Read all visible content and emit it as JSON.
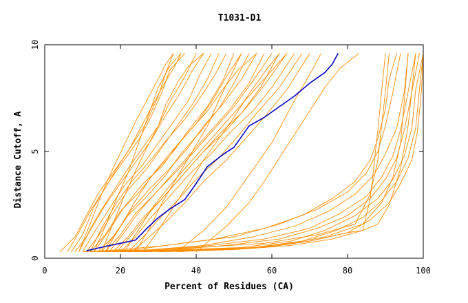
{
  "chart_data": {
    "type": "line",
    "title": "T1031-D1",
    "xlabel": "Percent of Residues (CA)",
    "ylabel": "Distance Cutoff, A",
    "xlim": [
      0,
      100
    ],
    "ylim": [
      0,
      10
    ],
    "x_ticks": [
      "0",
      "20",
      "40",
      "60",
      "80",
      "100"
    ],
    "y_ticks": [
      "0",
      "5",
      "10"
    ],
    "grid": false,
    "colors": {
      "highlight": "#0000cc",
      "others": "#ff8c00",
      "axis": "#000000"
    },
    "highlight_series": {
      "x": [
        11,
        16,
        20,
        24,
        27,
        30,
        33,
        37,
        40,
        43,
        47,
        50,
        52,
        54,
        58,
        62,
        66,
        70,
        74,
        76,
        77.5
      ],
      "y": [
        0.35,
        0.55,
        0.7,
        0.85,
        1.4,
        1.9,
        2.3,
        2.75,
        3.5,
        4.3,
        4.85,
        5.2,
        5.7,
        6.2,
        6.6,
        7.1,
        7.6,
        8.2,
        8.7,
        9.1,
        9.6
      ]
    },
    "other_series": [
      {
        "x": [
          4,
          8,
          11,
          14,
          18,
          22,
          25,
          28,
          31,
          33,
          35,
          36
        ],
        "y": [
          0.3,
          1.0,
          2.0,
          3.0,
          4.0,
          5.0,
          6.0,
          7.0,
          8.0,
          8.6,
          9.2,
          9.6
        ]
      },
      {
        "x": [
          6,
          9,
          12,
          16,
          19,
          23,
          27,
          30,
          32,
          34
        ],
        "y": [
          0.3,
          1.2,
          2.2,
          3.3,
          4.2,
          5.3,
          6.4,
          7.6,
          8.7,
          9.6
        ]
      },
      {
        "x": [
          7,
          10,
          13,
          17,
          21,
          25,
          28,
          31,
          33,
          37
        ],
        "y": [
          0.3,
          1.1,
          2.4,
          3.6,
          4.6,
          5.6,
          6.6,
          7.8,
          8.8,
          9.6
        ]
      },
      {
        "x": [
          8,
          11,
          14,
          18,
          22,
          26,
          30,
          33,
          37,
          40
        ],
        "y": [
          0.3,
          1.0,
          2.0,
          3.1,
          4.2,
          5.2,
          6.2,
          7.3,
          8.5,
          9.6
        ]
      },
      {
        "x": [
          9,
          12,
          16,
          20,
          24,
          28,
          32,
          36,
          39,
          42
        ],
        "y": [
          0.3,
          1.3,
          2.5,
          3.5,
          4.5,
          5.5,
          6.7,
          7.8,
          8.8,
          9.6
        ]
      },
      {
        "x": [
          10,
          13,
          17,
          21,
          26,
          30,
          34,
          38,
          41,
          44
        ],
        "y": [
          0.3,
          1.2,
          2.3,
          3.4,
          4.4,
          5.4,
          6.4,
          7.4,
          8.6,
          9.6
        ]
      },
      {
        "x": [
          11,
          14,
          18,
          22,
          27,
          31,
          35,
          39,
          43,
          46
        ],
        "y": [
          0.3,
          1.0,
          2.1,
          3.2,
          4.2,
          5.2,
          6.2,
          7.2,
          8.4,
          9.6
        ]
      },
      {
        "x": [
          12,
          15,
          19,
          23,
          28,
          32,
          37,
          41,
          45,
          48
        ],
        "y": [
          0.3,
          1.4,
          2.6,
          3.6,
          4.6,
          5.5,
          6.5,
          7.5,
          8.6,
          9.6
        ]
      },
      {
        "x": [
          12,
          16,
          20,
          25,
          29,
          34,
          38,
          43,
          47,
          50
        ],
        "y": [
          0.3,
          1.1,
          2.2,
          3.1,
          4.0,
          5.0,
          6.0,
          7.1,
          8.3,
          9.6
        ]
      },
      {
        "x": [
          13,
          17,
          21,
          26,
          31,
          35,
          40,
          44,
          48,
          52
        ],
        "y": [
          0.3,
          1.3,
          2.4,
          3.5,
          4.3,
          5.3,
          6.3,
          7.3,
          8.5,
          9.6
        ]
      },
      {
        "x": [
          14,
          18,
          22,
          27,
          32,
          36,
          41,
          46,
          50,
          54
        ],
        "y": [
          0.3,
          1.0,
          2.0,
          2.9,
          3.9,
          4.9,
          5.9,
          7.0,
          8.2,
          9.6
        ]
      },
      {
        "x": [
          15,
          19,
          23,
          28,
          33,
          38,
          42,
          47,
          52,
          56
        ],
        "y": [
          0.3,
          1.2,
          2.3,
          3.3,
          4.2,
          5.2,
          6.2,
          7.2,
          8.4,
          9.6
        ]
      },
      {
        "x": [
          16,
          20,
          24,
          29,
          34,
          39,
          44,
          49,
          54,
          58
        ],
        "y": [
          0.3,
          1.1,
          2.1,
          3.0,
          4.0,
          5.0,
          6.0,
          7.0,
          8.2,
          9.6
        ]
      },
      {
        "x": [
          17,
          21,
          25,
          30,
          35,
          40,
          45,
          50,
          55,
          60
        ],
        "y": [
          0.3,
          1.2,
          2.2,
          3.2,
          4.1,
          5.1,
          6.1,
          7.1,
          8.3,
          9.6
        ]
      },
      {
        "x": [
          18,
          22,
          26,
          31,
          36,
          41,
          46,
          52,
          57,
          62
        ],
        "y": [
          0.3,
          1.0,
          1.9,
          2.8,
          3.8,
          4.8,
          5.8,
          6.8,
          8.0,
          9.6
        ]
      },
      {
        "x": [
          19,
          23,
          27,
          32,
          37,
          42,
          48,
          53,
          58,
          64
        ],
        "y": [
          0.3,
          1.1,
          2.0,
          3.0,
          4.0,
          5.0,
          6.0,
          7.0,
          8.1,
          9.6
        ]
      },
      {
        "x": [
          20,
          24,
          28,
          33,
          38,
          44,
          49,
          55,
          60,
          66
        ],
        "y": [
          0.3,
          1.0,
          1.9,
          2.9,
          3.9,
          4.9,
          5.9,
          6.9,
          8.0,
          9.6
        ]
      },
      {
        "x": [
          22,
          26,
          30,
          35,
          40,
          46,
          51,
          56,
          62,
          68
        ],
        "y": [
          0.3,
          1.0,
          1.8,
          2.7,
          3.7,
          4.7,
          5.7,
          6.8,
          8.0,
          9.6
        ]
      },
      {
        "x": [
          23,
          27,
          32,
          37,
          42,
          48,
          53,
          58,
          64,
          70
        ],
        "y": [
          0.3,
          0.9,
          1.7,
          2.6,
          3.6,
          4.6,
          5.6,
          6.6,
          7.9,
          9.6
        ]
      },
      {
        "x": [
          13,
          16,
          19,
          22,
          24,
          26,
          28,
          30,
          33,
          36
        ],
        "y": [
          0.3,
          1.5,
          2.8,
          4.0,
          5.0,
          6.0,
          7.0,
          8.0,
          9.0,
          9.6
        ]
      },
      {
        "x": [
          15,
          18,
          21,
          24,
          27,
          30,
          32,
          35,
          38,
          42
        ],
        "y": [
          0.3,
          1.6,
          2.9,
          4.1,
          5.2,
          6.2,
          7.2,
          8.2,
          9.0,
          9.6
        ]
      },
      {
        "x": [
          24,
          28,
          31,
          35,
          39,
          43,
          46,
          49,
          52
        ],
        "y": [
          0.3,
          1.5,
          2.6,
          3.8,
          5.0,
          6.2,
          7.4,
          8.5,
          9.6
        ]
      },
      {
        "x": [
          26,
          30,
          34,
          38,
          42,
          46,
          50,
          54,
          58,
          62
        ],
        "y": [
          0.3,
          1.3,
          2.4,
          3.5,
          4.6,
          5.6,
          6.6,
          7.7,
          8.7,
          9.6
        ]
      },
      {
        "x": [
          35,
          42,
          48,
          52,
          56,
          60,
          63,
          66,
          70,
          73
        ],
        "y": [
          0.3,
          1.3,
          2.4,
          3.4,
          4.4,
          5.4,
          6.4,
          7.4,
          8.6,
          9.6
        ]
      },
      {
        "x": [
          40,
          48,
          54,
          58,
          62,
          66,
          70,
          74,
          78,
          83
        ],
        "y": [
          0.3,
          1.5,
          2.6,
          3.6,
          4.7,
          5.8,
          6.9,
          8.0,
          8.9,
          9.6
        ]
      },
      {
        "x": [
          10,
          20,
          32,
          45,
          58,
          68,
          76,
          82,
          86,
          88,
          90,
          91,
          93
        ],
        "y": [
          0.3,
          0.4,
          0.6,
          0.9,
          1.4,
          2.0,
          2.8,
          3.6,
          4.6,
          5.6,
          7.0,
          8.4,
          9.6
        ]
      },
      {
        "x": [
          12,
          24,
          36,
          50,
          62,
          72,
          80,
          85,
          88,
          90,
          92,
          94
        ],
        "y": [
          0.3,
          0.4,
          0.7,
          1.0,
          1.6,
          2.3,
          3.1,
          4.0,
          5.0,
          6.2,
          7.8,
          9.6
        ]
      },
      {
        "x": [
          14,
          28,
          42,
          55,
          66,
          75,
          82,
          87,
          90,
          93,
          95,
          96
        ],
        "y": [
          0.3,
          0.4,
          0.6,
          1.0,
          1.5,
          2.2,
          3.0,
          3.9,
          4.9,
          6.1,
          7.8,
          9.6
        ]
      },
      {
        "x": [
          16,
          30,
          44,
          58,
          70,
          78,
          85,
          89,
          92,
          94,
          96,
          98
        ],
        "y": [
          0.3,
          0.4,
          0.6,
          0.9,
          1.4,
          2.1,
          2.9,
          3.8,
          4.8,
          6.0,
          7.8,
          9.6
        ]
      },
      {
        "x": [
          18,
          34,
          48,
          62,
          72,
          80,
          86,
          90,
          93,
          95,
          97,
          99
        ],
        "y": [
          0.3,
          0.4,
          0.6,
          0.9,
          1.4,
          2.0,
          2.8,
          3.7,
          4.7,
          6.0,
          7.8,
          9.6
        ]
      },
      {
        "x": [
          20,
          36,
          52,
          65,
          74,
          82,
          88,
          92,
          95,
          97,
          98,
          100
        ],
        "y": [
          0.3,
          0.4,
          0.5,
          0.8,
          1.3,
          2.0,
          2.8,
          3.7,
          4.8,
          6.1,
          7.9,
          9.6
        ]
      },
      {
        "x": [
          22,
          40,
          55,
          68,
          77,
          84,
          89,
          93,
          96,
          98,
          99,
          100
        ],
        "y": [
          0.3,
          0.4,
          0.5,
          0.8,
          1.3,
          1.9,
          2.7,
          3.6,
          4.7,
          6.1,
          7.9,
          9.6
        ]
      },
      {
        "x": [
          24,
          42,
          58,
          70,
          80,
          86,
          91,
          94,
          97,
          98.5,
          99.5,
          100
        ],
        "y": [
          0.3,
          0.4,
          0.5,
          0.8,
          1.2,
          1.8,
          2.6,
          3.5,
          4.6,
          6.0,
          7.8,
          9.6
        ]
      },
      {
        "x": [
          30,
          50,
          65,
          76,
          84,
          88,
          91,
          94,
          96,
          98
        ],
        "y": [
          0.3,
          0.4,
          0.6,
          0.9,
          1.3,
          1.6,
          2.5,
          4.2,
          6.2,
          9.6
        ]
      },
      {
        "x": [
          35,
          55,
          70,
          80,
          84,
          86,
          87,
          88,
          89,
          90
        ],
        "y": [
          0.3,
          0.5,
          0.8,
          1.2,
          1.3,
          2.8,
          4.4,
          6.0,
          7.8,
          9.6
        ]
      },
      {
        "x": [
          20,
          40,
          58,
          72,
          82,
          86,
          88,
          89,
          90,
          91
        ],
        "y": [
          0.3,
          0.5,
          0.7,
          1.1,
          1.6,
          3.0,
          4.6,
          6.2,
          7.8,
          9.6
        ]
      },
      {
        "x": [
          26,
          48,
          62,
          74,
          84,
          89,
          92,
          94,
          95,
          96
        ],
        "y": [
          0.3,
          0.4,
          0.6,
          1.0,
          1.6,
          2.6,
          3.8,
          5.4,
          7.4,
          9.6
        ]
      },
      {
        "x": [
          9,
          12,
          15,
          18,
          21,
          24,
          27,
          30,
          32,
          34
        ],
        "y": [
          0.3,
          1.6,
          3.0,
          4.2,
          5.3,
          6.4,
          7.4,
          8.4,
          9.1,
          9.6
        ]
      },
      {
        "x": [
          16,
          20,
          24,
          28,
          33,
          38,
          43,
          47,
          51,
          56
        ],
        "y": [
          0.3,
          1.5,
          2.7,
          3.8,
          4.9,
          5.9,
          6.9,
          7.9,
          8.8,
          9.6
        ]
      },
      {
        "x": [
          21,
          25,
          29,
          34,
          39,
          44,
          49,
          54,
          59,
          64
        ],
        "y": [
          0.3,
          1.4,
          2.5,
          3.6,
          4.6,
          5.6,
          6.6,
          7.6,
          8.6,
          9.6
        ]
      }
    ]
  }
}
